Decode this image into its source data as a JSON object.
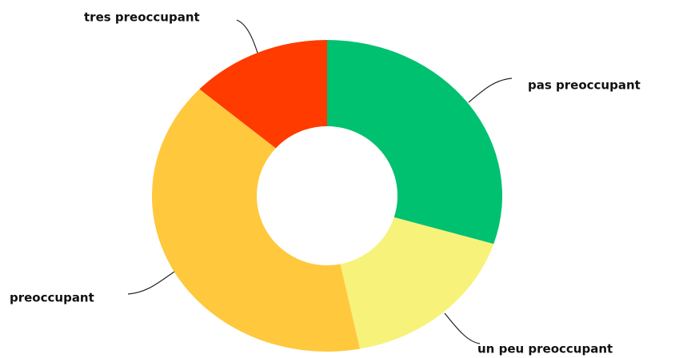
{
  "chart_data": {
    "type": "donut",
    "categories": [
      "pas preoccupant",
      "un peu preoccupant",
      "preoccupant",
      "tres preoccupant"
    ],
    "values": [
      30,
      17,
      40,
      13
    ],
    "colors": [
      "#00c170",
      "#f7f27a",
      "#ffc83d",
      "#ff3b00"
    ]
  }
}
